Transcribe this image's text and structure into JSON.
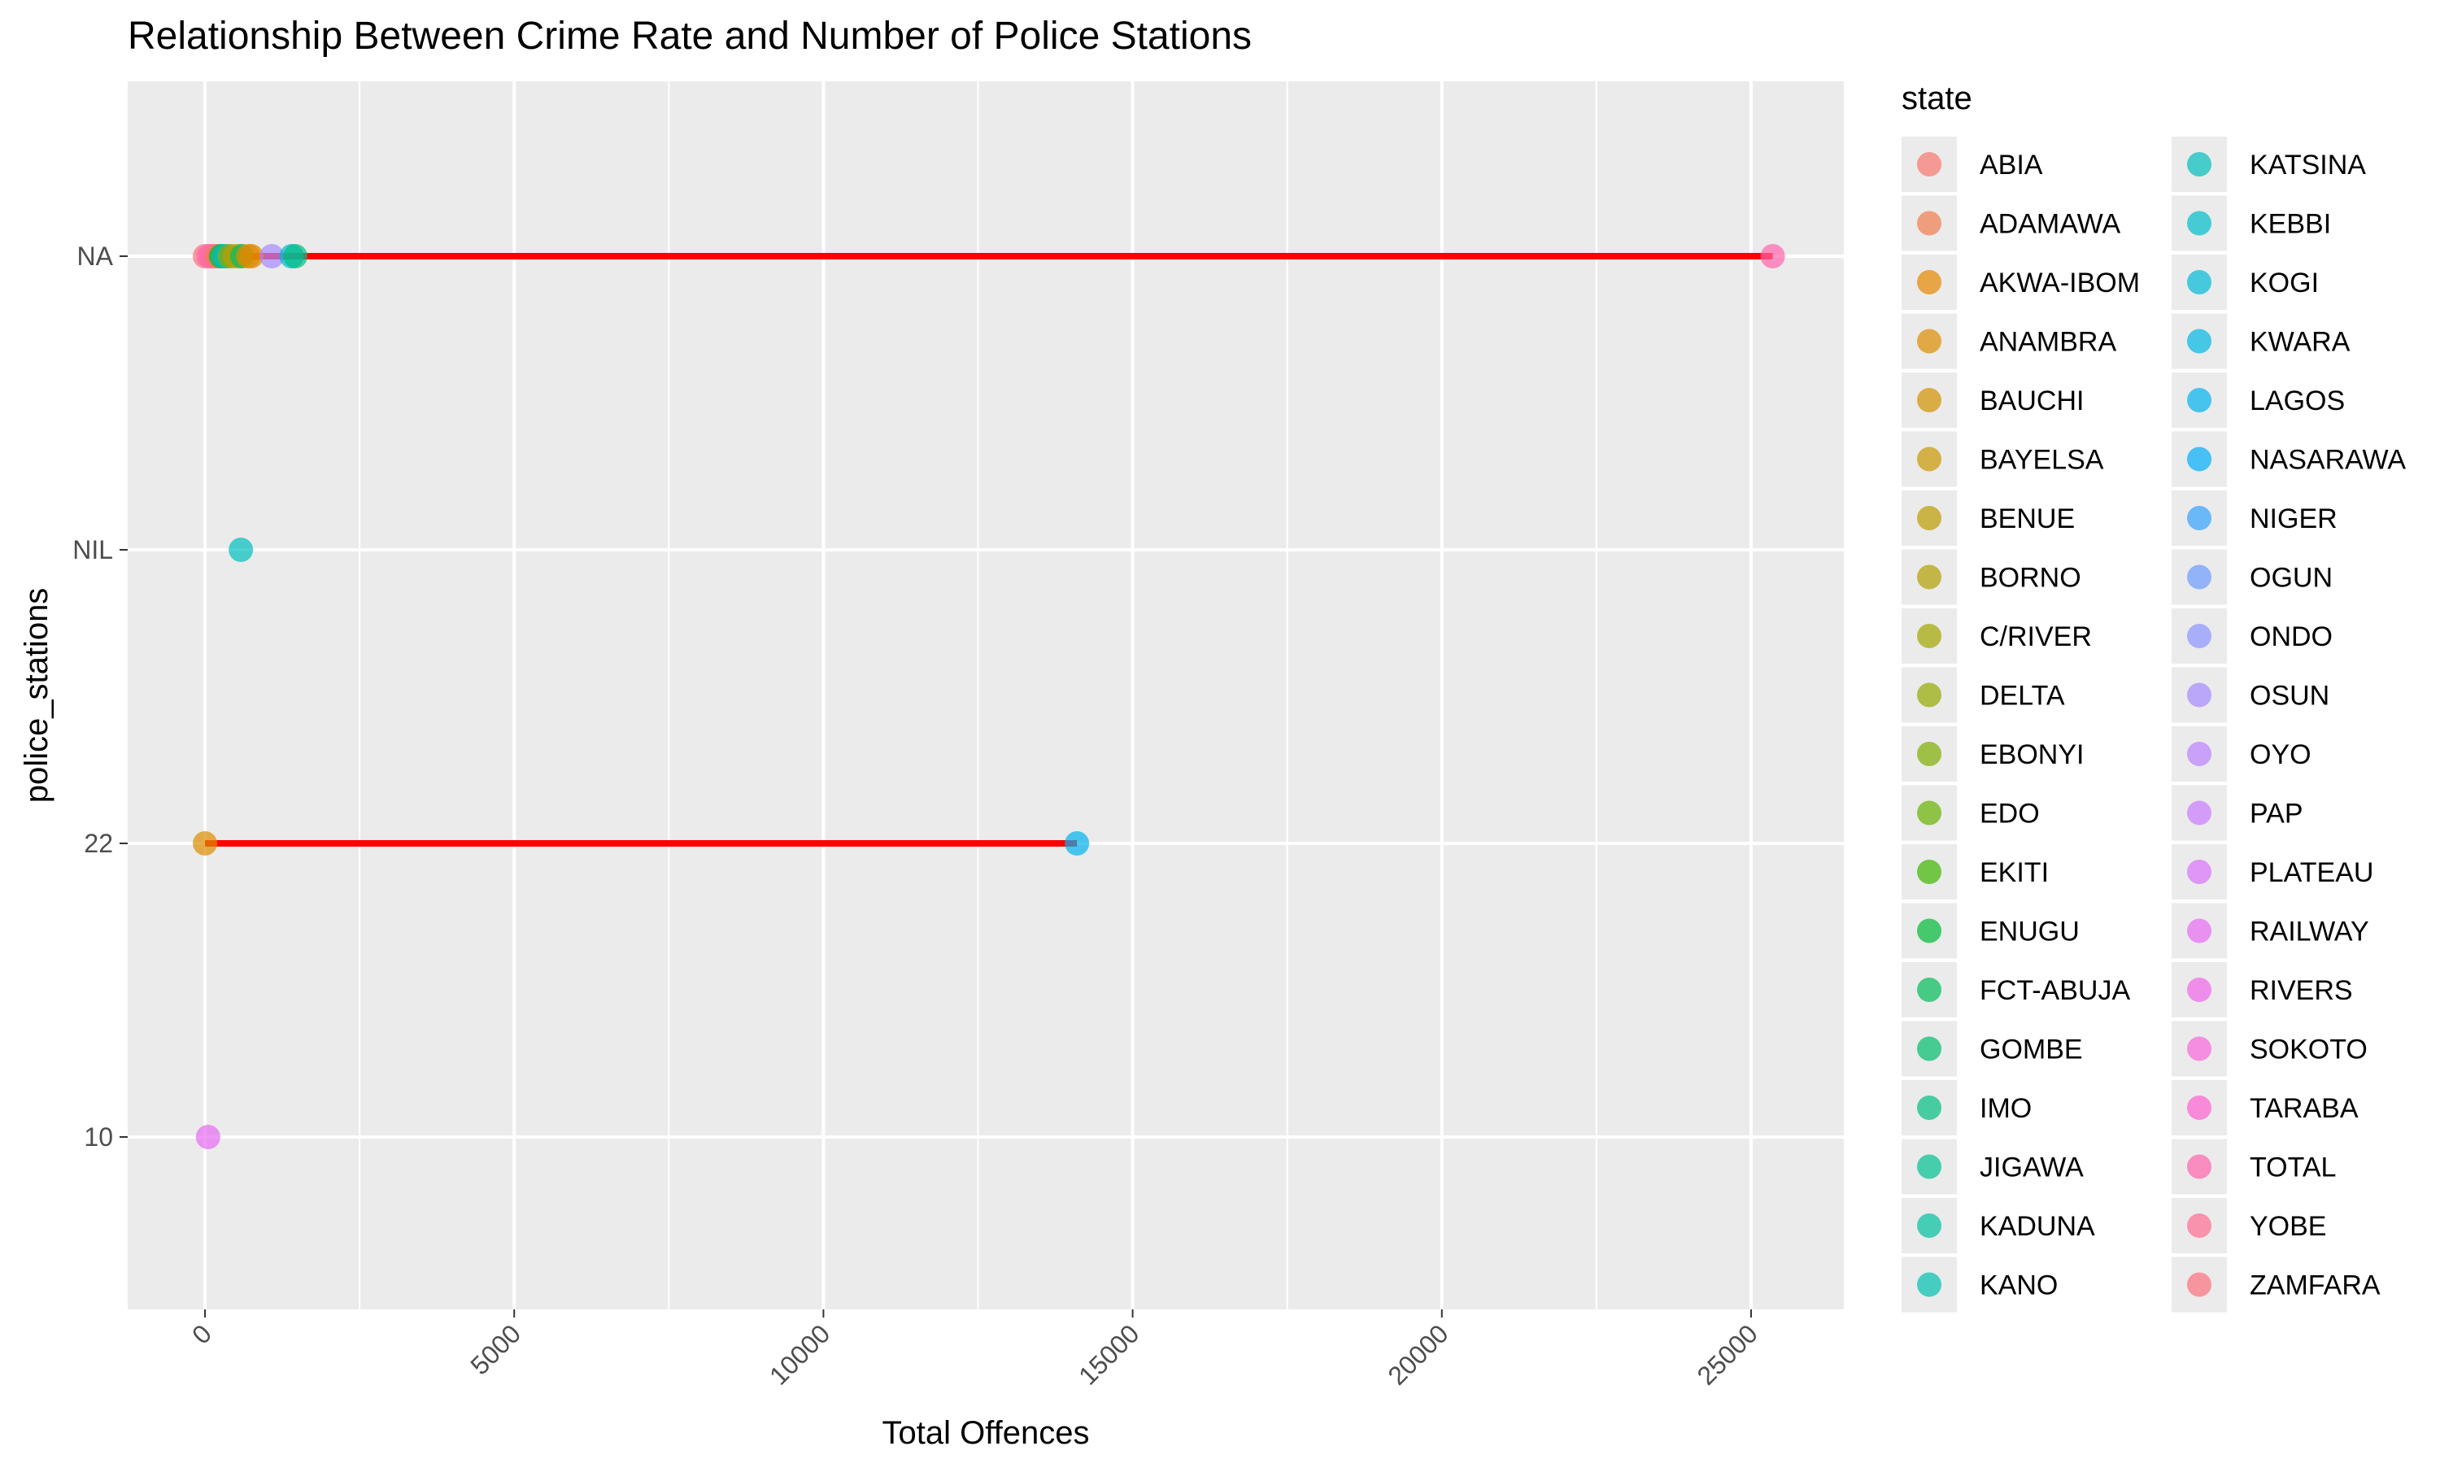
{
  "chart_data": {
    "type": "scatter",
    "title": "Relationship Between Crime Rate and Number of Police Stations",
    "xlabel": "Total Offences",
    "ylabel": "police_stations",
    "xlim": [
      -1250,
      26500
    ],
    "x_ticks": [
      0,
      5000,
      10000,
      15000,
      20000,
      25000
    ],
    "x_tick_labels": [
      "0",
      "5000",
      "10000",
      "15000",
      "20000",
      "25000"
    ],
    "y_categories": [
      "10",
      "22",
      "NIL",
      "NA"
    ],
    "grid": true,
    "legend_title": "state",
    "legend_position": "right",
    "states": [
      {
        "name": "ABIA",
        "color": "#F8766D"
      },
      {
        "name": "ADAMAWA",
        "color": "#F07E4E"
      },
      {
        "name": "AKWA-IBOM",
        "color": "#E58700"
      },
      {
        "name": "ANAMBRA",
        "color": "#DD8D00"
      },
      {
        "name": "BAUCHI",
        "color": "#D39200"
      },
      {
        "name": "BAYELSA",
        "color": "#C99800"
      },
      {
        "name": "BENUE",
        "color": "#BE9C00"
      },
      {
        "name": "BORNO",
        "color": "#B3A000"
      },
      {
        "name": "C/RIVER",
        "color": "#A3A500"
      },
      {
        "name": "DELTA",
        "color": "#93AA00"
      },
      {
        "name": "EBONYI",
        "color": "#7FAE00"
      },
      {
        "name": "EDO",
        "color": "#68B200"
      },
      {
        "name": "EKITI",
        "color": "#3EB600"
      },
      {
        "name": "ENUGU",
        "color": "#00BA38"
      },
      {
        "name": "FCT-ABUJA",
        "color": "#00BC59"
      },
      {
        "name": "GOMBE",
        "color": "#00BD6E"
      },
      {
        "name": "IMO",
        "color": "#00BF80"
      },
      {
        "name": "JIGAWA",
        "color": "#00C091"
      },
      {
        "name": "KADUNA",
        "color": "#00C0A0"
      },
      {
        "name": "KANO",
        "color": "#00C0AF"
      },
      {
        "name": "KATSINA",
        "color": "#00BFBC"
      },
      {
        "name": "KEBBI",
        "color": "#00BDCA"
      },
      {
        "name": "KOGI",
        "color": "#00BBD6"
      },
      {
        "name": "KWARA",
        "color": "#00B8E3"
      },
      {
        "name": "LAGOS",
        "color": "#00B4EF"
      },
      {
        "name": "NASARAWA",
        "color": "#00AEFA"
      },
      {
        "name": "NIGER",
        "color": "#35A2FF"
      },
      {
        "name": "OGUN",
        "color": "#6C9AFF"
      },
      {
        "name": "ONDO",
        "color": "#8C94FF"
      },
      {
        "name": "OSUN",
        "color": "#A58AFF"
      },
      {
        "name": "OYO",
        "color": "#BA82FF"
      },
      {
        "name": "PAP",
        "color": "#CB7BFF"
      },
      {
        "name": "PLATEAU",
        "color": "#DA72FB"
      },
      {
        "name": "RAILWAY",
        "color": "#E76BF3"
      },
      {
        "name": "RIVERS",
        "color": "#F166E9"
      },
      {
        "name": "SOKOTO",
        "color": "#F966DC"
      },
      {
        "name": "TARABA",
        "color": "#FD61D1"
      },
      {
        "name": "TOTAL",
        "color": "#FF65AC"
      },
      {
        "name": "YOBE",
        "color": "#FF6C91"
      },
      {
        "name": "ZAMFARA",
        "color": "#FC717F"
      }
    ],
    "points": [
      {
        "state": "ZAMFARA",
        "x": 0,
        "y": "NA"
      },
      {
        "state": "YOBE",
        "x": 60,
        "y": "NA"
      },
      {
        "state": "TARABA",
        "x": 100,
        "y": "NA"
      },
      {
        "state": "SOKOTO",
        "x": 180,
        "y": "NA"
      },
      {
        "state": "ABIA",
        "x": 150,
        "y": "NA"
      },
      {
        "state": "ADAMAWA",
        "x": 220,
        "y": "NA"
      },
      {
        "state": "ENUGU",
        "x": 260,
        "y": "NA"
      },
      {
        "state": "KADUNA",
        "x": 300,
        "y": "NA"
      },
      {
        "state": "KEBBI",
        "x": 350,
        "y": "NA"
      },
      {
        "state": "DELTA",
        "x": 400,
        "y": "NA"
      },
      {
        "state": "BENUE",
        "x": 480,
        "y": "NA"
      },
      {
        "state": "BORNO",
        "x": 560,
        "y": "NA"
      },
      {
        "state": "GOMBE",
        "x": 600,
        "y": "NA"
      },
      {
        "state": "BAUCHI",
        "x": 700,
        "y": "NA"
      },
      {
        "state": "AKWA-IBOM",
        "x": 750,
        "y": "NA"
      },
      {
        "state": "OSUN",
        "x": 1080,
        "y": "NA"
      },
      {
        "state": "KOGI",
        "x": 1400,
        "y": "NA"
      },
      {
        "state": "IMO",
        "x": 1460,
        "y": "NA"
      },
      {
        "state": "TOTAL",
        "x": 25350,
        "y": "NA"
      },
      {
        "state": "KATSINA",
        "x": 580,
        "y": "NIL"
      },
      {
        "state": "ANAMBRA",
        "x": 0,
        "y": "22"
      },
      {
        "state": "LAGOS",
        "x": 14100,
        "y": "22"
      },
      {
        "state": "RAILWAY",
        "x": 50,
        "y": "10"
      }
    ],
    "lines": [
      {
        "y": "NA",
        "x_start": 0,
        "x_end": 25350,
        "color": "#FF0000"
      },
      {
        "y": "22",
        "x_start": 0,
        "x_end": 14100,
        "color": "#FF0000"
      }
    ]
  }
}
